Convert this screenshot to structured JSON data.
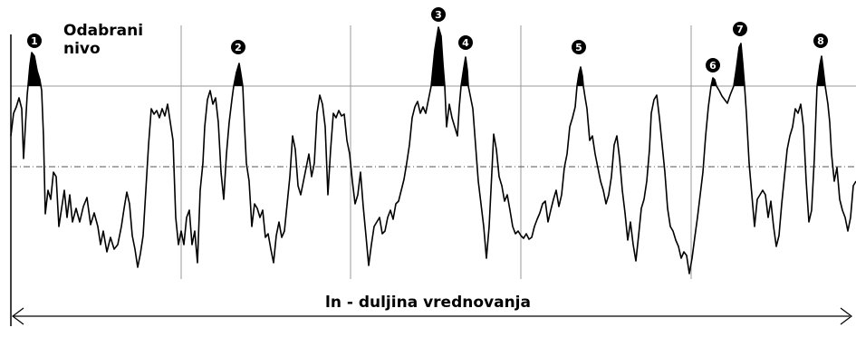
{
  "level_label": {
    "line1": "Odabrani",
    "line2": "nivo"
  },
  "length_label": "ln - duljina vrednovanja",
  "peaks": [
    {
      "n": "1",
      "glyph": "❶"
    },
    {
      "n": "2",
      "glyph": "❷"
    },
    {
      "n": "3",
      "glyph": "❸"
    },
    {
      "n": "4",
      "glyph": "❹"
    },
    {
      "n": "5",
      "glyph": "❺"
    },
    {
      "n": "6",
      "glyph": "❻"
    },
    {
      "n": "7",
      "glyph": "❼"
    },
    {
      "n": "8",
      "glyph": "❽"
    }
  ],
  "colors": {
    "line": "#000000",
    "fill": "#000000",
    "grid": "#9a9a9a",
    "background": "#ffffff"
  }
}
